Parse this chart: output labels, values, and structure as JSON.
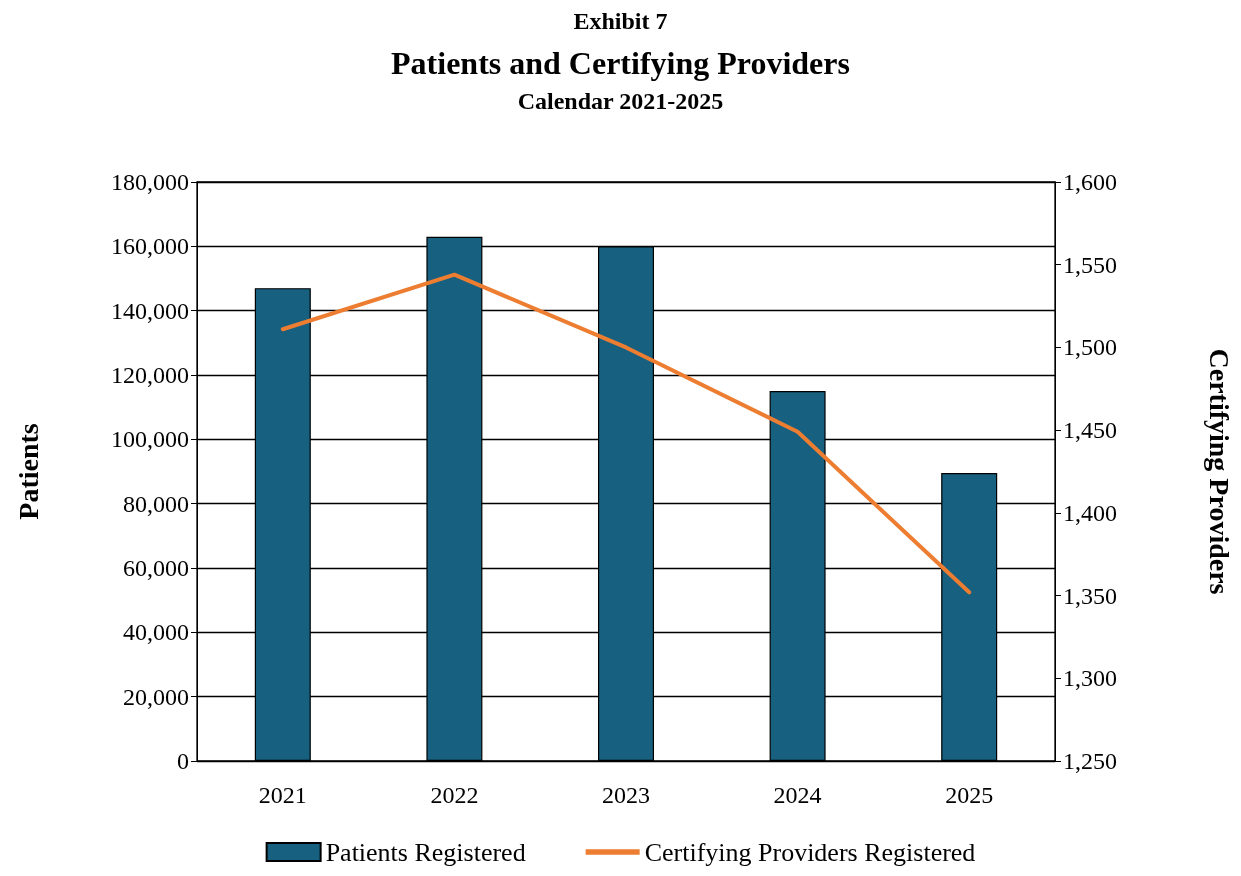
{
  "chart_data": {
    "type": "bar",
    "title": "Patients and Certifying Providers",
    "subtitle": "Calendar 2021-2025",
    "annotations": [
      "Exhibit 7"
    ],
    "ylabel": "Patients",
    "y2label": "Certifying Providers",
    "categories": [
      "2021",
      "2022",
      "2023",
      "2024",
      "2025"
    ],
    "series": [
      {
        "name": "Patients Registered",
        "color": "#17607f",
        "values": [
          147000,
          163000,
          160000,
          115000,
          89500
        ]
      },
      {
        "name": "Certifying Providers Registered",
        "type": "line",
        "axis": "y2",
        "color": "#ed7d31",
        "values": [
          1511,
          1544,
          1500,
          1449,
          1352
        ]
      }
    ],
    "ylim": [
      0,
      180000
    ],
    "yticks": [
      {
        "value": 0,
        "label": "0"
      },
      {
        "value": 20000,
        "label": "20,000"
      },
      {
        "value": 40000,
        "label": "40,000"
      },
      {
        "value": 60000,
        "label": "60,000"
      },
      {
        "value": 80000,
        "label": "80,000"
      },
      {
        "value": 100000,
        "label": "100,000"
      },
      {
        "value": 120000,
        "label": "120,000"
      },
      {
        "value": 140000,
        "label": "140,000"
      },
      {
        "value": 160000,
        "label": "160,000"
      },
      {
        "value": 180000,
        "label": "180,000"
      }
    ],
    "y2lim": [
      1250,
      1600
    ],
    "y2ticks": [
      {
        "value": 1250,
        "label": "1,250"
      },
      {
        "value": 1300,
        "label": "1,300"
      },
      {
        "value": 1350,
        "label": "1,350"
      },
      {
        "value": 1400,
        "label": "1,400"
      },
      {
        "value": 1450,
        "label": "1,450"
      },
      {
        "value": 1500,
        "label": "1,500"
      },
      {
        "value": 1550,
        "label": "1,550"
      },
      {
        "value": 1600,
        "label": "1,600"
      }
    ],
    "grid": "y",
    "legend": "bottom",
    "marker": "none",
    "line_style": "solid"
  }
}
